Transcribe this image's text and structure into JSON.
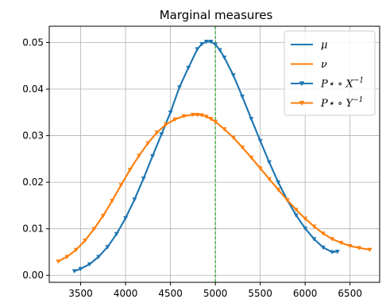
{
  "chart_data": {
    "type": "line",
    "title": "Marginal measures",
    "xlabel": "",
    "ylabel": "",
    "xlim": [
      3150,
      6830
    ],
    "ylim": [
      -0.0015,
      0.0535
    ],
    "xticks": [
      3500,
      4000,
      4500,
      5000,
      5500,
      6000,
      6500
    ],
    "xtick_labels": [
      "3500",
      "4000",
      "4500",
      "5000",
      "5500",
      "6000",
      "6500"
    ],
    "yticks": [
      0.0,
      0.01,
      0.02,
      0.03,
      0.04,
      0.05
    ],
    "ytick_labels": [
      "0.00",
      "0.01",
      "0.02",
      "0.03",
      "0.04",
      "0.05"
    ],
    "grid": true,
    "legend_placement": "top-right",
    "vline": {
      "x": 5000,
      "color": "#2ca02c",
      "style": "dashed"
    },
    "colors": {
      "blue": "#1f77b4",
      "orange": "#ff7f0e"
    },
    "legend": [
      {
        "label": "μ",
        "color": "#1f77b4",
        "marker": "none"
      },
      {
        "label": "ν",
        "color": "#ff7f0e",
        "marker": "none"
      },
      {
        "label": "P⋆ ∘ X",
        "superscript": "−1",
        "color": "#1f77b4",
        "marker": "triangle-down"
      },
      {
        "label": "P⋆ ∘ Y",
        "superscript": "−1",
        "color": "#ff7f0e",
        "marker": "triangle-down"
      }
    ],
    "series": [
      {
        "name": "μ",
        "color": "#1f77b4",
        "marker": "none",
        "x": [
          3430,
          3500,
          3600,
          3700,
          3800,
          3900,
          4000,
          4100,
          4200,
          4300,
          4400,
          4500,
          4600,
          4700,
          4800,
          4850,
          4900,
          4950,
          5000,
          5050,
          5100,
          5200,
          5300,
          5400,
          5500,
          5600,
          5700,
          5800,
          5900,
          6000,
          6100,
          6200,
          6300,
          6360
        ],
        "y": [
          0.0009,
          0.0014,
          0.0024,
          0.004,
          0.0061,
          0.0089,
          0.0123,
          0.0163,
          0.0208,
          0.0256,
          0.0303,
          0.035,
          0.0404,
          0.0446,
          0.0486,
          0.0497,
          0.0502,
          0.0502,
          0.0496,
          0.0484,
          0.0468,
          0.043,
          0.0384,
          0.0336,
          0.0289,
          0.0243,
          0.02,
          0.0162,
          0.0129,
          0.0101,
          0.0078,
          0.006,
          0.005,
          0.0051
        ]
      },
      {
        "name": "ν",
        "color": "#ff7f0e",
        "marker": "none",
        "x": [
          3250,
          3350,
          3450,
          3550,
          3650,
          3750,
          3850,
          3950,
          4050,
          4150,
          4250,
          4350,
          4450,
          4550,
          4650,
          4750,
          4800,
          4850,
          4900,
          4950,
          5000,
          5100,
          5200,
          5300,
          5400,
          5500,
          5600,
          5700,
          5800,
          5900,
          6000,
          6100,
          6200,
          6300,
          6400,
          6500,
          6600,
          6720
        ],
        "y": [
          0.003,
          0.004,
          0.0055,
          0.0075,
          0.01,
          0.0128,
          0.016,
          0.0194,
          0.0227,
          0.0257,
          0.0284,
          0.0307,
          0.0324,
          0.0335,
          0.0342,
          0.0345,
          0.0345,
          0.0344,
          0.0341,
          0.0336,
          0.033,
          0.0314,
          0.0296,
          0.0275,
          0.0253,
          0.023,
          0.0207,
          0.0184,
          0.0162,
          0.0141,
          0.0122,
          0.0105,
          0.009,
          0.0078,
          0.007,
          0.0063,
          0.0059,
          0.0055
        ]
      },
      {
        "name": "P⋆ ∘ X⁻¹",
        "color": "#1f77b4",
        "marker": "triangle-down",
        "x": [
          3430,
          3500,
          3600,
          3700,
          3800,
          3900,
          4000,
          4100,
          4200,
          4300,
          4400,
          4500,
          4600,
          4700,
          4800,
          4850,
          4900,
          4950,
          5000,
          5050,
          5100,
          5200,
          5300,
          5400,
          5500,
          5600,
          5700,
          5800,
          5900,
          6000,
          6100,
          6200,
          6300,
          6360
        ],
        "y": [
          0.0009,
          0.0014,
          0.0024,
          0.004,
          0.0061,
          0.0089,
          0.0123,
          0.0163,
          0.0208,
          0.0256,
          0.0303,
          0.035,
          0.0404,
          0.0446,
          0.0486,
          0.0497,
          0.0502,
          0.0502,
          0.0496,
          0.0484,
          0.0468,
          0.043,
          0.0384,
          0.0336,
          0.0289,
          0.0243,
          0.02,
          0.0162,
          0.0129,
          0.0101,
          0.0078,
          0.006,
          0.005,
          0.0051
        ]
      },
      {
        "name": "P⋆ ∘ Y⁻¹",
        "color": "#ff7f0e",
        "marker": "triangle-down",
        "x": [
          3250,
          3350,
          3450,
          3550,
          3650,
          3750,
          3850,
          3950,
          4050,
          4150,
          4250,
          4350,
          4450,
          4550,
          4650,
          4750,
          4800,
          4850,
          4900,
          4950,
          5000,
          5100,
          5200,
          5300,
          5400,
          5500,
          5600,
          5700,
          5800,
          5900,
          6000,
          6100,
          6200,
          6300,
          6400,
          6500,
          6600,
          6720
        ],
        "y": [
          0.003,
          0.004,
          0.0055,
          0.0075,
          0.01,
          0.0128,
          0.016,
          0.0194,
          0.0227,
          0.0257,
          0.0284,
          0.0307,
          0.0324,
          0.0335,
          0.0342,
          0.0345,
          0.0345,
          0.0344,
          0.0341,
          0.0336,
          0.033,
          0.0314,
          0.0296,
          0.0275,
          0.0253,
          0.023,
          0.0207,
          0.0184,
          0.0162,
          0.0141,
          0.0122,
          0.0105,
          0.009,
          0.0078,
          0.007,
          0.0063,
          0.0059,
          0.0055
        ]
      }
    ]
  }
}
